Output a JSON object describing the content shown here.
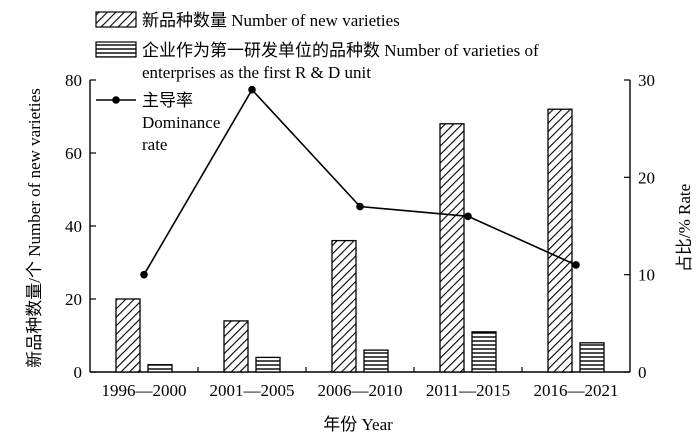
{
  "chart_data": {
    "type": "bar",
    "title": "",
    "xlabel": "年份 Year",
    "ylabel_left": "新品种数量/个 Number of new varieties",
    "ylabel_right": "占比/% Rate",
    "categories": [
      "1996—2000",
      "2001—2005",
      "2006—2010",
      "2011—2015",
      "2016—2021"
    ],
    "ylim_left": [
      0,
      80
    ],
    "yticks_left": [
      0,
      20,
      40,
      60,
      80
    ],
    "ylim_right": [
      0,
      30
    ],
    "yticks_right": [
      0,
      10,
      20,
      30
    ],
    "grid": false,
    "legend_position": "top-left",
    "series": [
      {
        "name": "新品种数量 Number of new varieties",
        "kind": "bar",
        "pattern": "diagonal-hatch",
        "axis": "left",
        "values": [
          20,
          14,
          36,
          68,
          72
        ]
      },
      {
        "name": "企业作为第一研发单位的品种数 Number of varieties of enterprises as the first R & D unit",
        "legend_lines": [
          "企业作为第一研发单位的品种数 Number of varieties of",
          "enterprises as the first R & D unit"
        ],
        "kind": "bar",
        "pattern": "horizontal-hatch",
        "axis": "left",
        "values": [
          2,
          4,
          6,
          11,
          8
        ]
      },
      {
        "name": "主导率 Dominance rate",
        "legend_lines": [
          "主导率",
          "Dominance",
          "rate"
        ],
        "kind": "line",
        "marker": "circle",
        "axis": "right",
        "values": [
          10,
          29,
          17,
          16,
          11
        ]
      }
    ]
  }
}
